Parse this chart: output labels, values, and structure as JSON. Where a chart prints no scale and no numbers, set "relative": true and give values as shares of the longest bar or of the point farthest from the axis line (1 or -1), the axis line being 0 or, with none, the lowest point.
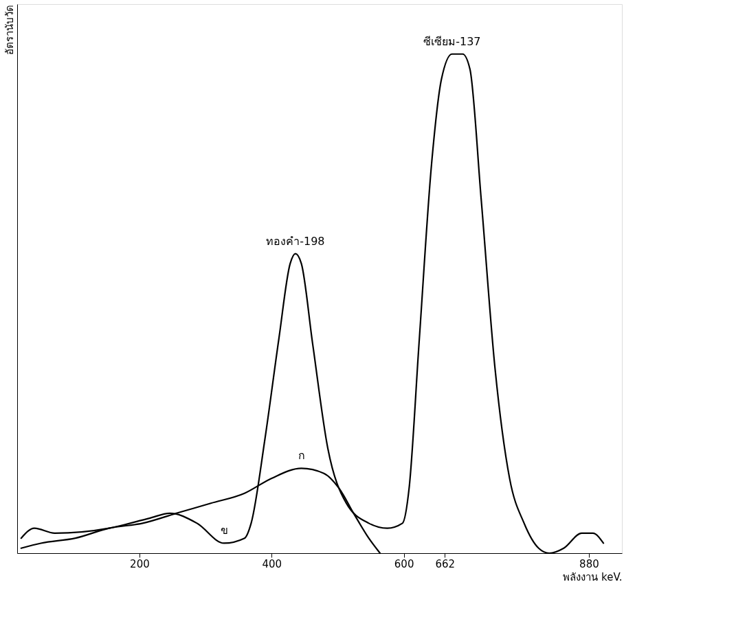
{
  "chart_data": {
    "type": "line",
    "relative": true,
    "xlabel": "พลังงาน keV.",
    "ylabel": "อัตรานับวัด",
    "xlim": [
      15,
      930
    ],
    "xticks": [
      200,
      400,
      600,
      662,
      880
    ],
    "grid": false,
    "marker": "none",
    "line_style": "solid",
    "series": [
      {
        "color": "#000000",
        "x": [
          21,
          41,
          72,
          154,
          215,
          246,
          287,
          328,
          359,
          369,
          390,
          411,
          428,
          436,
          445,
          462,
          485,
          513,
          547,
          575,
          598,
          608,
          623,
          642,
          657,
          673,
          689,
          700,
          717,
          738,
          760,
          782,
          804,
          820,
          842,
          869,
          886,
          902
        ],
        "values": [
          0.03,
          0.05,
          0.04,
          0.05,
          0.07,
          0.08,
          0.06,
          0.02,
          0.03,
          0.06,
          0.23,
          0.43,
          0.58,
          0.6,
          0.58,
          0.42,
          0.21,
          0.1,
          0.06,
          0.05,
          0.06,
          0.13,
          0.42,
          0.78,
          0.95,
          1,
          1,
          0.97,
          0.71,
          0.37,
          0.15,
          0.06,
          0.01,
          0,
          0.01,
          0.04,
          0.04,
          0.02
        ]
      },
      {
        "color": "#000000",
        "x": [
          21,
          51,
          103,
          154,
          205,
          256,
          308,
          359,
          400,
          445,
          479,
          502,
          524,
          547,
          564
        ],
        "values": [
          0.01,
          0.02,
          0.03,
          0.05,
          0.06,
          0.08,
          0.1,
          0.12,
          0.15,
          0.17,
          0.16,
          0.13,
          0.08,
          0.03,
          0
        ]
      }
    ],
    "annotations": [
      {
        "text": "ซีเซียม-137",
        "x": 673,
        "y": 1
      },
      {
        "text": "ทองคำ-198",
        "x": 436,
        "y": 0.6
      },
      {
        "text": "ก",
        "x": 445,
        "y": 0.17
      },
      {
        "text": "ข",
        "x": 328,
        "y": 0.02
      }
    ]
  }
}
